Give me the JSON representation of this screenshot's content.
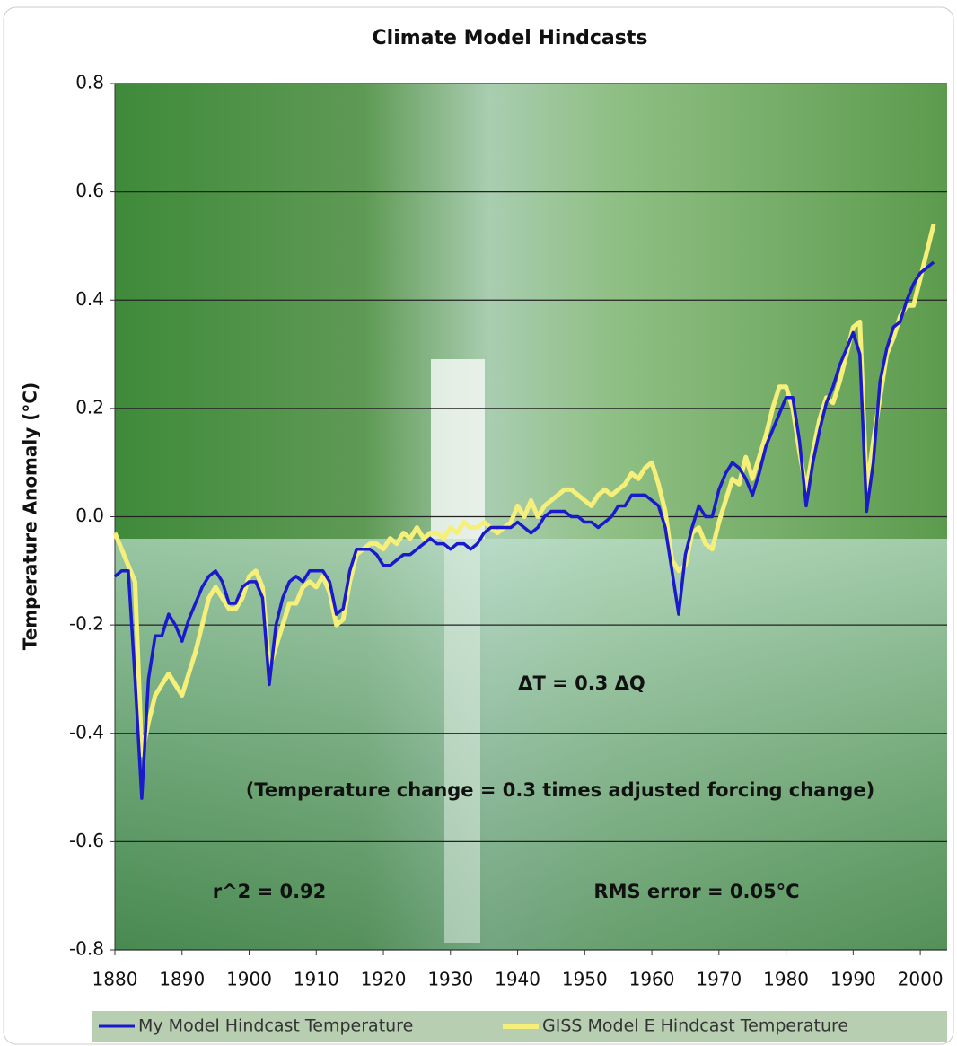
{
  "chart_data": {
    "type": "line",
    "title": "Climate Model Hindcasts",
    "y_label": "Temperature Anomaly (°C)",
    "x": [
      1880,
      1881,
      1882,
      1883,
      1884,
      1885,
      1886,
      1887,
      1888,
      1889,
      1890,
      1891,
      1892,
      1893,
      1894,
      1895,
      1896,
      1897,
      1898,
      1899,
      1900,
      1901,
      1902,
      1903,
      1904,
      1905,
      1906,
      1907,
      1908,
      1909,
      1910,
      1911,
      1912,
      1913,
      1914,
      1915,
      1916,
      1917,
      1918,
      1919,
      1920,
      1921,
      1922,
      1923,
      1924,
      1925,
      1926,
      1927,
      1928,
      1929,
      1930,
      1931,
      1932,
      1933,
      1934,
      1935,
      1936,
      1937,
      1938,
      1939,
      1940,
      1941,
      1942,
      1943,
      1944,
      1945,
      1946,
      1947,
      1948,
      1949,
      1950,
      1951,
      1952,
      1953,
      1954,
      1955,
      1956,
      1957,
      1958,
      1959,
      1960,
      1961,
      1962,
      1963,
      1964,
      1965,
      1966,
      1967,
      1968,
      1969,
      1970,
      1971,
      1972,
      1973,
      1974,
      1975,
      1976,
      1977,
      1978,
      1979,
      1980,
      1981,
      1982,
      1983,
      1984,
      1985,
      1986,
      1987,
      1988,
      1989,
      1990,
      1991,
      1992,
      1993,
      1994,
      1995,
      1996,
      1997,
      1998,
      1999,
      2000,
      2001,
      2002
    ],
    "series": [
      {
        "name": "My Model Hindcast Temperature",
        "color": "#1a1acc",
        "values": [
          -0.11,
          -0.1,
          -0.1,
          -0.3,
          -0.52,
          -0.3,
          -0.22,
          -0.22,
          -0.18,
          -0.2,
          -0.23,
          -0.19,
          -0.16,
          -0.13,
          -0.11,
          -0.1,
          -0.12,
          -0.16,
          -0.16,
          -0.13,
          -0.12,
          -0.12,
          -0.15,
          -0.31,
          -0.2,
          -0.15,
          -0.12,
          -0.11,
          -0.12,
          -0.1,
          -0.1,
          -0.1,
          -0.12,
          -0.18,
          -0.17,
          -0.1,
          -0.06,
          -0.06,
          -0.06,
          -0.07,
          -0.09,
          -0.09,
          -0.08,
          -0.07,
          -0.07,
          -0.06,
          -0.05,
          -0.04,
          -0.05,
          -0.05,
          -0.06,
          -0.05,
          -0.05,
          -0.06,
          -0.05,
          -0.03,
          -0.02,
          -0.02,
          -0.02,
          -0.02,
          -0.01,
          -0.02,
          -0.03,
          -0.02,
          0.0,
          0.01,
          0.01,
          0.01,
          0.0,
          0.0,
          -0.01,
          -0.01,
          -0.02,
          -0.01,
          0.0,
          0.02,
          0.02,
          0.04,
          0.04,
          0.04,
          0.03,
          0.02,
          -0.02,
          -0.1,
          -0.18,
          -0.07,
          -0.02,
          0.02,
          0.0,
          0.0,
          0.05,
          0.08,
          0.1,
          0.09,
          0.07,
          0.04,
          0.08,
          0.13,
          0.16,
          0.19,
          0.22,
          0.22,
          0.14,
          0.02,
          0.1,
          0.16,
          0.21,
          0.24,
          0.28,
          0.31,
          0.34,
          0.3,
          0.01,
          0.1,
          0.25,
          0.31,
          0.35,
          0.36,
          0.4,
          0.43,
          0.45,
          0.46,
          0.47
        ]
      },
      {
        "name": "GISS Model E Hindcast Temperature",
        "color": "#f6f07a",
        "values": [
          -0.03,
          -0.06,
          -0.09,
          -0.12,
          -0.44,
          -0.38,
          -0.33,
          -0.31,
          -0.29,
          -0.31,
          -0.33,
          -0.29,
          -0.25,
          -0.2,
          -0.15,
          -0.13,
          -0.15,
          -0.17,
          -0.17,
          -0.15,
          -0.11,
          -0.1,
          -0.13,
          -0.28,
          -0.24,
          -0.2,
          -0.16,
          -0.16,
          -0.13,
          -0.12,
          -0.13,
          -0.11,
          -0.14,
          -0.2,
          -0.19,
          -0.12,
          -0.07,
          -0.06,
          -0.05,
          -0.05,
          -0.06,
          -0.04,
          -0.05,
          -0.03,
          -0.04,
          -0.02,
          -0.04,
          -0.03,
          -0.03,
          -0.04,
          -0.02,
          -0.03,
          -0.01,
          -0.02,
          -0.02,
          -0.01,
          -0.02,
          -0.03,
          -0.02,
          -0.01,
          0.02,
          0.0,
          0.03,
          0.0,
          0.02,
          0.03,
          0.04,
          0.05,
          0.05,
          0.04,
          0.03,
          0.02,
          0.04,
          0.05,
          0.04,
          0.05,
          0.06,
          0.08,
          0.07,
          0.09,
          0.1,
          0.06,
          0.01,
          -0.08,
          -0.1,
          -0.09,
          -0.03,
          -0.02,
          -0.05,
          -0.06,
          -0.01,
          0.03,
          0.07,
          0.06,
          0.11,
          0.07,
          0.11,
          0.15,
          0.2,
          0.24,
          0.24,
          0.2,
          0.12,
          0.05,
          0.12,
          0.18,
          0.22,
          0.21,
          0.25,
          0.3,
          0.35,
          0.36,
          0.05,
          0.14,
          0.22,
          0.3,
          0.33,
          0.37,
          0.39,
          0.39,
          0.44,
          0.49,
          0.54
        ]
      }
    ],
    "xlim": [
      1880,
      2004
    ],
    "xticks": [
      1880,
      1890,
      1900,
      1910,
      1920,
      1930,
      1940,
      1950,
      1960,
      1970,
      1980,
      1990,
      2000
    ],
    "ylim": [
      -0.8,
      0.8
    ],
    "yticks": [
      -0.8,
      -0.6,
      -0.4,
      -0.2,
      {
        "value": 0,
        "label": "0.0"
      },
      0.2,
      0.4,
      0.6,
      0.8
    ],
    "grid": true,
    "legend": "bottom",
    "annotations": [
      "ΔT = 0.3 ΔQ",
      "(Temperature change = 0.3 times adjusted forcing change)",
      "r^2 = 0.92",
      "RMS error = 0.05°C"
    ]
  }
}
